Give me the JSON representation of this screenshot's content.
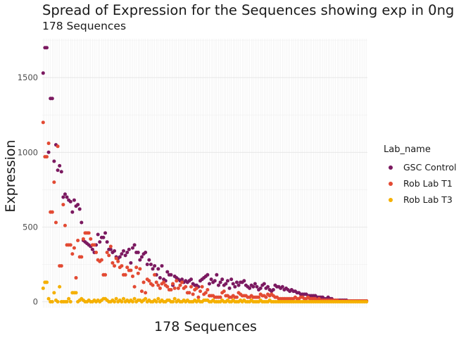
{
  "chart_data": {
    "type": "scatter",
    "title": "Spread of Expression for the Sequences showing exp in 0ng",
    "subtitle": "178 Sequences",
    "xlabel": "178 Sequences",
    "ylabel": "Expression",
    "ylim": [
      -40,
      1760
    ],
    "yticks": [
      0,
      500,
      1000,
      1500
    ],
    "n_sequences": 178,
    "grid": true,
    "legend_title": "Lab_name",
    "legend_position": "right",
    "series": [
      {
        "name": "GSC Control",
        "color": "#7b1960",
        "x": [
          1,
          2,
          3,
          4,
          5,
          6,
          7,
          8,
          9,
          10,
          11,
          12,
          13,
          14,
          15,
          16,
          17,
          18,
          19,
          20,
          21,
          22,
          23,
          24,
          25,
          26,
          27,
          28,
          29,
          30,
          31,
          32,
          33,
          34,
          35,
          36,
          37,
          38,
          39,
          40,
          41,
          42,
          43,
          44,
          45,
          46,
          47,
          48,
          49,
          50,
          51,
          52,
          53,
          54,
          55,
          56,
          57,
          58,
          59,
          60,
          61,
          62,
          63,
          64,
          65,
          66,
          67,
          68,
          69,
          70,
          71,
          72,
          73,
          74,
          75,
          76,
          77,
          78,
          79,
          80,
          81,
          82,
          83,
          84,
          85,
          86,
          87,
          88,
          89,
          90,
          91,
          92,
          93,
          94,
          95,
          96,
          97,
          98,
          99,
          100,
          101,
          102,
          103,
          104,
          105,
          106,
          107,
          108,
          109,
          110,
          111,
          112,
          113,
          114,
          115,
          116,
          117,
          118,
          119,
          120,
          121,
          122,
          123,
          124,
          125,
          126,
          127,
          128,
          129,
          130,
          131,
          132,
          133,
          134,
          135,
          136,
          137,
          138,
          139,
          140,
          141,
          142,
          143,
          144,
          145,
          146,
          147,
          148,
          149,
          150,
          151,
          152,
          153,
          154,
          155,
          156,
          157,
          158,
          159,
          160,
          161,
          162,
          163,
          164,
          165,
          166,
          167,
          168,
          169,
          170,
          171,
          172,
          173,
          174,
          175,
          176,
          177,
          178
        ],
        "values": [
          1530,
          1700,
          1700,
          1000,
          1360,
          1360,
          940,
          1050,
          880,
          910,
          870,
          700,
          720,
          700,
          680,
          670,
          600,
          680,
          640,
          650,
          620,
          530,
          410,
          400,
          390,
          380,
          370,
          350,
          330,
          380,
          450,
          400,
          430,
          430,
          460,
          400,
          350,
          350,
          330,
          340,
          300,
          290,
          300,
          320,
          340,
          310,
          330,
          350,
          260,
          360,
          380,
          330,
          330,
          280,
          300,
          320,
          330,
          250,
          280,
          250,
          220,
          240,
          180,
          220,
          160,
          240,
          150,
          140,
          200,
          180,
          180,
          110,
          170,
          160,
          150,
          140,
          150,
          130,
          140,
          130,
          140,
          150,
          120,
          110,
          110,
          100,
          140,
          150,
          160,
          170,
          180,
          120,
          150,
          130,
          140,
          180,
          110,
          130,
          150,
          110,
          120,
          140,
          90,
          150,
          120,
          100,
          130,
          110,
          130,
          130,
          140,
          110,
          100,
          90,
          110,
          100,
          120,
          100,
          80,
          90,
          110,
          120,
          90,
          100,
          80,
          70,
          80,
          110,
          100,
          100,
          90,
          100,
          80,
          90,
          80,
          70,
          80,
          70,
          70,
          60,
          60,
          50,
          50,
          50,
          50,
          40,
          40,
          40,
          40,
          40,
          30,
          30,
          30,
          30,
          20,
          20,
          30,
          20,
          20,
          10,
          10,
          10,
          10,
          10,
          10,
          10,
          10,
          5,
          5,
          5,
          5,
          5,
          5,
          5,
          5,
          5,
          5,
          5
        ]
      },
      {
        "name": "Rob Lab T1",
        "color": "#e34a33",
        "x": [
          1,
          2,
          3,
          4,
          5,
          6,
          7,
          8,
          9,
          10,
          11,
          12,
          13,
          14,
          15,
          16,
          17,
          18,
          19,
          20,
          21,
          22,
          23,
          24,
          25,
          26,
          27,
          28,
          29,
          30,
          31,
          32,
          33,
          34,
          35,
          36,
          37,
          38,
          39,
          40,
          41,
          42,
          43,
          44,
          45,
          46,
          47,
          48,
          49,
          50,
          51,
          52,
          53,
          54,
          55,
          56,
          57,
          58,
          59,
          60,
          61,
          62,
          63,
          64,
          65,
          66,
          67,
          68,
          69,
          70,
          71,
          72,
          73,
          74,
          75,
          76,
          77,
          78,
          79,
          80,
          81,
          82,
          83,
          84,
          85,
          86,
          87,
          88,
          89,
          90,
          91,
          92,
          93,
          94,
          95,
          96,
          97,
          98,
          99,
          100,
          101,
          102,
          103,
          104,
          105,
          106,
          107,
          108,
          109,
          110,
          111,
          112,
          113,
          114,
          115,
          116,
          117,
          118,
          119,
          120,
          121,
          122,
          123,
          124,
          125,
          126,
          127,
          128,
          129,
          130,
          131,
          132,
          133,
          134,
          135,
          136,
          137,
          138,
          139,
          140,
          141,
          142,
          143,
          144,
          145,
          146,
          147,
          148,
          149,
          150,
          151,
          152,
          153,
          154,
          155,
          156,
          157,
          158,
          159,
          160,
          161,
          162,
          163,
          164,
          165,
          166,
          167,
          168,
          169,
          170,
          171,
          172,
          173,
          174,
          175,
          176,
          177,
          178
        ],
        "values": [
          1200,
          970,
          970,
          1060,
          600,
          600,
          800,
          530,
          1040,
          240,
          240,
          650,
          510,
          380,
          380,
          380,
          320,
          360,
          160,
          410,
          300,
          300,
          420,
          460,
          460,
          460,
          420,
          380,
          380,
          330,
          280,
          270,
          280,
          180,
          180,
          330,
          310,
          370,
          260,
          240,
          290,
          270,
          230,
          240,
          180,
          180,
          230,
          210,
          210,
          170,
          100,
          230,
          190,
          220,
          70,
          130,
          60,
          150,
          140,
          120,
          110,
          180,
          130,
          110,
          90,
          120,
          130,
          110,
          100,
          80,
          80,
          120,
          90,
          140,
          90,
          110,
          130,
          90,
          100,
          60,
          60,
          100,
          50,
          80,
          90,
          30,
          70,
          100,
          50,
          60,
          80,
          40,
          40,
          40,
          30,
          30,
          30,
          30,
          60,
          70,
          40,
          40,
          30,
          30,
          40,
          30,
          30,
          60,
          50,
          40,
          40,
          40,
          30,
          30,
          40,
          30,
          30,
          30,
          30,
          50,
          40,
          40,
          30,
          50,
          40,
          50,
          40,
          30,
          30,
          20,
          20,
          20,
          20,
          20,
          20,
          20,
          20,
          20,
          30,
          20,
          20,
          30,
          30,
          20,
          20,
          30,
          20,
          20,
          20,
          20,
          10,
          20,
          10,
          10,
          10,
          10,
          10,
          10,
          10,
          10,
          10,
          10,
          5,
          5,
          5,
          5,
          5,
          5,
          5,
          5,
          5,
          5,
          5,
          5,
          5,
          5,
          5,
          5
        ]
      },
      {
        "name": "Rob Lab T3",
        "color": "#f5b000",
        "x": [
          1,
          2,
          3,
          4,
          5,
          6,
          7,
          8,
          9,
          10,
          11,
          12,
          13,
          14,
          15,
          16,
          17,
          18,
          19,
          20,
          21,
          22,
          23,
          24,
          25,
          26,
          27,
          28,
          29,
          30,
          31,
          32,
          33,
          34,
          35,
          36,
          37,
          38,
          39,
          40,
          41,
          42,
          43,
          44,
          45,
          46,
          47,
          48,
          49,
          50,
          51,
          52,
          53,
          54,
          55,
          56,
          57,
          58,
          59,
          60,
          61,
          62,
          63,
          64,
          65,
          66,
          67,
          68,
          69,
          70,
          71,
          72,
          73,
          74,
          75,
          76,
          77,
          78,
          79,
          80,
          81,
          82,
          83,
          84,
          85,
          86,
          87,
          88,
          89,
          90,
          91,
          92,
          93,
          94,
          95,
          96,
          97,
          98,
          99,
          100,
          101,
          102,
          103,
          104,
          105,
          106,
          107,
          108,
          109,
          110,
          111,
          112,
          113,
          114,
          115,
          116,
          117,
          118,
          119,
          120,
          121,
          122,
          123,
          124,
          125,
          126,
          127,
          128,
          129,
          130,
          131,
          132,
          133,
          134,
          135,
          136,
          137,
          138,
          139,
          140,
          141,
          142,
          143,
          144,
          145,
          146,
          147,
          148,
          149,
          150,
          151,
          152,
          153,
          154,
          155,
          156,
          157,
          158,
          159,
          160,
          161,
          162,
          163,
          164,
          165,
          166,
          167,
          168,
          169,
          170,
          171,
          172,
          173,
          174,
          175,
          176,
          177,
          178
        ],
        "values": [
          90,
          130,
          130,
          20,
          0,
          0,
          60,
          10,
          0,
          100,
          0,
          0,
          0,
          0,
          20,
          0,
          60,
          60,
          60,
          0,
          10,
          20,
          10,
          0,
          0,
          10,
          0,
          0,
          10,
          0,
          10,
          0,
          10,
          20,
          20,
          10,
          0,
          0,
          10,
          0,
          20,
          0,
          10,
          0,
          20,
          0,
          10,
          0,
          10,
          0,
          20,
          0,
          10,
          10,
          0,
          10,
          20,
          0,
          10,
          0,
          0,
          10,
          0,
          20,
          0,
          10,
          0,
          0,
          10,
          10,
          0,
          0,
          20,
          0,
          10,
          0,
          0,
          10,
          0,
          10,
          0,
          0,
          0,
          10,
          0,
          10,
          0,
          0,
          10,
          10,
          10,
          0,
          0,
          10,
          0,
          0,
          0,
          0,
          10,
          0,
          0,
          10,
          0,
          0,
          10,
          0,
          0,
          0,
          10,
          0,
          10,
          0,
          0,
          0,
          10,
          0,
          0,
          0,
          0,
          10,
          0,
          0,
          0,
          0,
          10,
          0,
          0,
          0,
          0,
          0,
          0,
          0,
          0,
          0,
          0,
          0,
          0,
          0,
          0,
          0,
          0,
          0,
          0,
          0,
          0,
          0,
          0,
          0,
          0,
          0,
          0,
          0,
          0,
          0,
          0,
          0,
          0,
          0,
          0,
          0,
          0,
          0,
          0,
          0,
          0,
          0,
          0,
          0,
          0,
          0,
          0,
          0,
          0,
          0,
          0,
          0,
          0,
          0
        ]
      }
    ]
  }
}
